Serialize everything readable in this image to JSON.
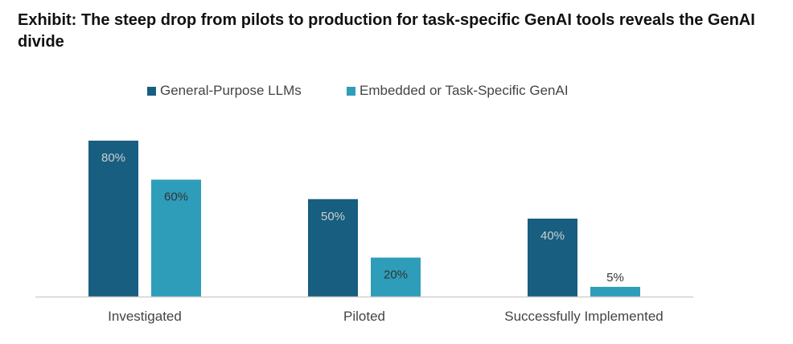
{
  "title": "Exhibit: The steep drop from pilots to production for task-specific GenAI tools reveals the GenAI divide",
  "chart_data": {
    "type": "bar",
    "title": "Exhibit: The steep drop from pilots to production for task-specific GenAI tools reveals the GenAI divide",
    "categories": [
      "Investigated",
      "Piloted",
      "Successfully Implemented"
    ],
    "series": [
      {
        "name": "General-Purpose LLMs",
        "values": [
          80,
          50,
          40
        ],
        "labels": [
          "80%",
          "50%",
          "40%"
        ],
        "color": "#175E80",
        "label_color": "#CFCFCF"
      },
      {
        "name": "Embedded or Task-Specific GenAI",
        "values": [
          60,
          20,
          5
        ],
        "labels": [
          "60%",
          "20%",
          "5%"
        ],
        "color": "#2E9DBA",
        "label_color": "#333333"
      }
    ],
    "xlabel": "",
    "ylabel": "",
    "ylim": [
      0,
      100
    ],
    "grid": false,
    "legend": "top-center"
  }
}
